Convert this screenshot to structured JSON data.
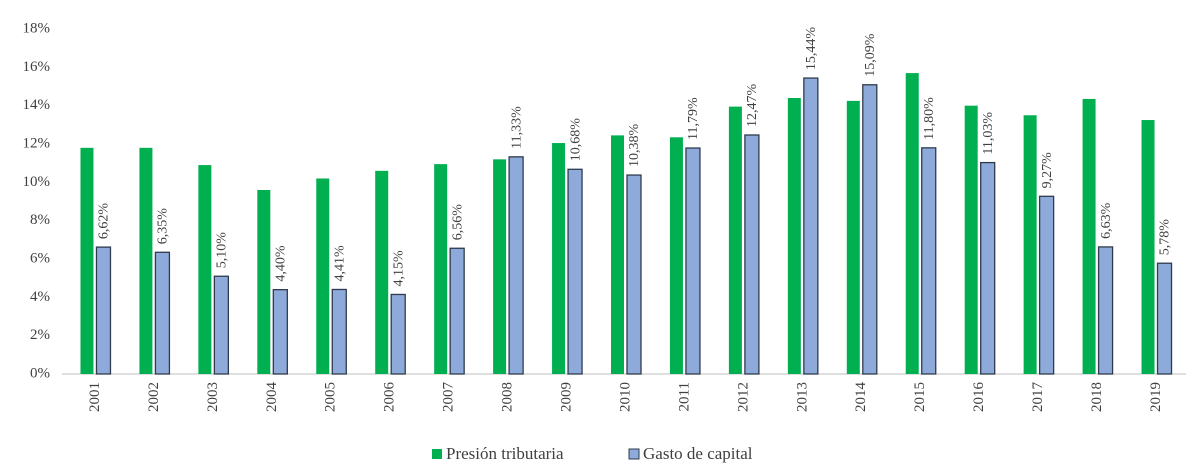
{
  "chart_data": {
    "type": "bar",
    "categories": [
      "2001",
      "2002",
      "2003",
      "2004",
      "2005",
      "2006",
      "2007",
      "2008",
      "2009",
      "2010",
      "2011",
      "2012",
      "2013",
      "2014",
      "2015",
      "2016",
      "2017",
      "2018",
      "2019"
    ],
    "series": [
      {
        "name": "Presión tributaria",
        "color": "#00b050",
        "values": [
          11.8,
          11.8,
          10.9,
          9.6,
          10.2,
          10.6,
          10.95,
          11.2,
          12.05,
          12.45,
          12.35,
          13.95,
          14.4,
          14.25,
          15.7,
          14.0,
          13.5,
          14.35,
          13.25
        ]
      },
      {
        "name": "Gasto de capital",
        "color": "#8eaadb",
        "values": [
          6.62,
          6.35,
          5.1,
          4.4,
          4.41,
          4.15,
          6.56,
          11.33,
          10.68,
          10.38,
          11.79,
          12.47,
          15.44,
          15.09,
          11.8,
          11.03,
          9.27,
          6.63,
          5.78
        ],
        "value_labels": [
          "6,62%",
          "6,35%",
          "5,10%",
          "4,40%",
          "4,41%",
          "4,15%",
          "6,56%",
          "11,33%",
          "10,68%",
          "10,38%",
          "11,79%",
          "12,47%",
          "15,44%",
          "15,09%",
          "11,80%",
          "11,03%",
          "9,27%",
          "6,63%",
          "5,78%"
        ]
      }
    ],
    "ylim": [
      0,
      18
    ],
    "yticks": [
      {
        "value": 0,
        "label": "0%"
      },
      {
        "value": 2,
        "label": "2%"
      },
      {
        "value": 4,
        "label": "4%"
      },
      {
        "value": 6,
        "label": "6%"
      },
      {
        "value": 8,
        "label": "8%"
      },
      {
        "value": 10,
        "label": "10%"
      },
      {
        "value": 12,
        "label": "12%"
      },
      {
        "value": 14,
        "label": "14%"
      },
      {
        "value": 16,
        "label": "16%"
      },
      {
        "value": 18,
        "label": "18%"
      }
    ],
    "legend": "bottom"
  }
}
